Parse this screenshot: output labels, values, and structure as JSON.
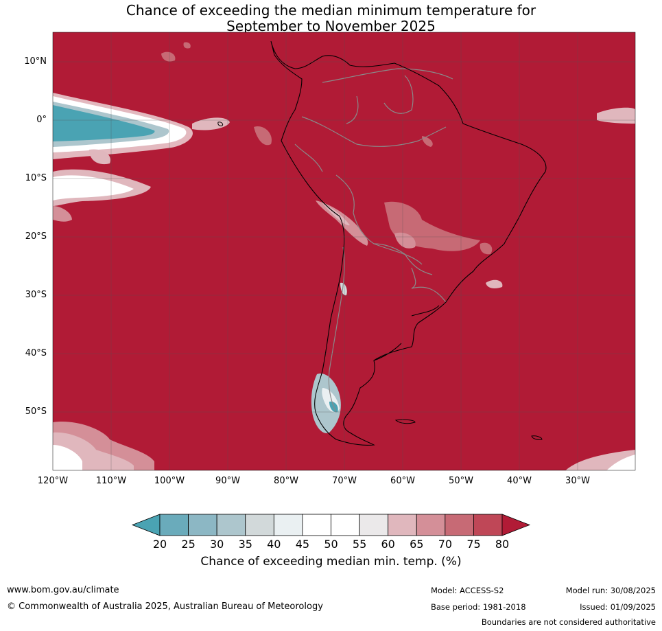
{
  "title": {
    "line1": "Chance of exceeding the median minimum temperature for",
    "line2": "September to November 2025"
  },
  "map": {
    "region": "South America",
    "latitude_labels": [
      "10°N",
      "0°",
      "10°S",
      "20°S",
      "30°S",
      "40°S",
      "50°S"
    ],
    "longitude_labels": [
      "120°W",
      "110°W",
      "100°W",
      "90°W",
      "80°W",
      "70°W",
      "60°W",
      "50°W",
      "40°W",
      "30°W"
    ],
    "background_color": "#b11b36",
    "layers": [
      "probability-field",
      "coastlines",
      "country-boundaries",
      "graticule"
    ]
  },
  "colorbar": {
    "ticks": [
      "20",
      "25",
      "30",
      "35",
      "40",
      "45",
      "50",
      "55",
      "60",
      "65",
      "70",
      "75",
      "80"
    ],
    "colors": [
      "#4aa3b3",
      "#6aabbb",
      "#8cb7c4",
      "#adc6cd",
      "#d2d9da",
      "#eaf0f2",
      "#ffffff",
      "#ffffff",
      "#ebe9ea",
      "#e0b7bd",
      "#d48f98",
      "#c76a75",
      "#bf4757",
      "#b11b36"
    ],
    "label": "Chance of exceeding median min. temp. (%)"
  },
  "footer": {
    "website": "www.bom.gov.au/climate",
    "copyright": "© Commonwealth of Australia 2025, Australian Bureau of Meteorology",
    "model": "Model: ACCESS-S2",
    "base_period": "Base period: 1981-2018",
    "model_run": "Model run: 30/08/2025",
    "issued": "Issued: 01/09/2025",
    "disclaimer": "Boundaries are not considered authoritative"
  }
}
